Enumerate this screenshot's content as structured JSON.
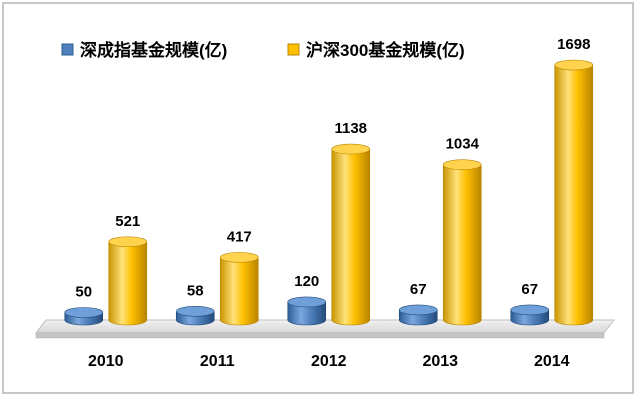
{
  "chart_data": {
    "type": "bar",
    "title": "",
    "xlabel": "",
    "ylabel": "",
    "categories": [
      "2010",
      "2011",
      "2012",
      "2013",
      "2014"
    ],
    "series": [
      {
        "name": "深成指基金规模(亿)",
        "color": "#4f81bd",
        "values": [
          50,
          58,
          120,
          67,
          67
        ]
      },
      {
        "name": "沪深300基金规模(亿)",
        "color": "#ffc000",
        "values": [
          521,
          417,
          1138,
          1034,
          1698
        ]
      }
    ],
    "ylim": [
      0,
      1800
    ],
    "grid": false,
    "legend_position": "top",
    "style": "3d-cylinder"
  }
}
